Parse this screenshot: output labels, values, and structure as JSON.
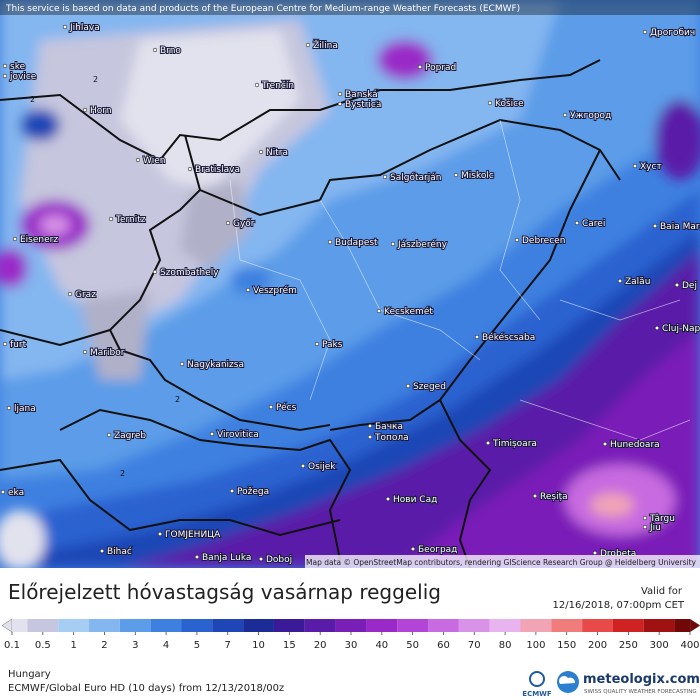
{
  "header": {
    "notice": "This service is based on data and products of the European Centre for Medium-range Weather Forecasts (ECMWF)"
  },
  "map": {
    "cities": [
      "Jihlava",
      "Brno",
      "Žilina",
      "Poprad",
      "Trenčín",
      "Banská",
      "Bystrica",
      "Košice",
      "Ужгород",
      "Дрогобич",
      "Horn",
      "Wien",
      "Bratislava",
      "Nitra",
      "Salgótarján",
      "Miskolc",
      "Хуст",
      "Ternitz",
      "Győr",
      "Eisenerz",
      "Budapest",
      "Jászberény",
      "Debrecen",
      "Carei",
      "Baia Mare",
      "Szombathely",
      "Graz",
      "Veszprém",
      "Zalău",
      "Dej",
      "Kecskemét",
      "Cluj-Napoca",
      "Maribor",
      "Nagykanizsa",
      "Paks",
      "Békéscsaba",
      "Szeged",
      "Pécs",
      "ljana",
      "Zagreb",
      "Virovitica",
      "Бачка",
      "Топола",
      "Timișoara",
      "Hunedoara",
      "Osijek",
      "Požega",
      "Нови Сад",
      "Reșița",
      "Târgu",
      "Jiu",
      "Bihać",
      "ГОМЈЕНИЦА",
      "Banja Luka",
      "Doboj",
      "Београд",
      "Drobeta",
      "ske",
      "jovice",
      "furt",
      "eka"
    ],
    "contour_labels": [
      "2",
      "2",
      "2",
      "2",
      "2"
    ],
    "attribution": "Map data © OpenStreetMap contributors, rendering GIScience Research Group @ Heidelberg University"
  },
  "footer": {
    "title": "Előrejelzett hóvastagság vasárnap reggelig",
    "valid_label": "Valid for",
    "valid_time": "12/16/2018, 07:00pm CET",
    "region": "Hungary",
    "model": "ECMWF/Global Euro HD (10 days) from 12/13/2018/00z",
    "ecmwf": "ECMWF",
    "brand": "meteologix.com",
    "brand_tagline": "SWISS QUALITY WEATHER FORECASTING"
  },
  "legend": {
    "ticks": [
      0.1,
      0.5,
      1,
      2,
      3,
      4,
      5,
      7,
      10,
      15,
      20,
      30,
      40,
      50,
      60,
      70,
      80,
      100,
      150,
      200,
      250,
      300,
      400
    ],
    "colors": [
      "#e2e2ee",
      "#c6c6de",
      "#a6cdf2",
      "#84b6f0",
      "#5c9ce8",
      "#3e80e0",
      "#2a62d0",
      "#1f46b6",
      "#1b2c96",
      "#3a1a98",
      "#5a1ca8",
      "#7a1eb8",
      "#9a2ac8",
      "#b244d8",
      "#c86ae0",
      "#d892e8",
      "#e8b4f0",
      "#f0a4b4",
      "#f07c7c",
      "#e84a4a",
      "#d02222",
      "#a01212",
      "#700808"
    ]
  }
}
